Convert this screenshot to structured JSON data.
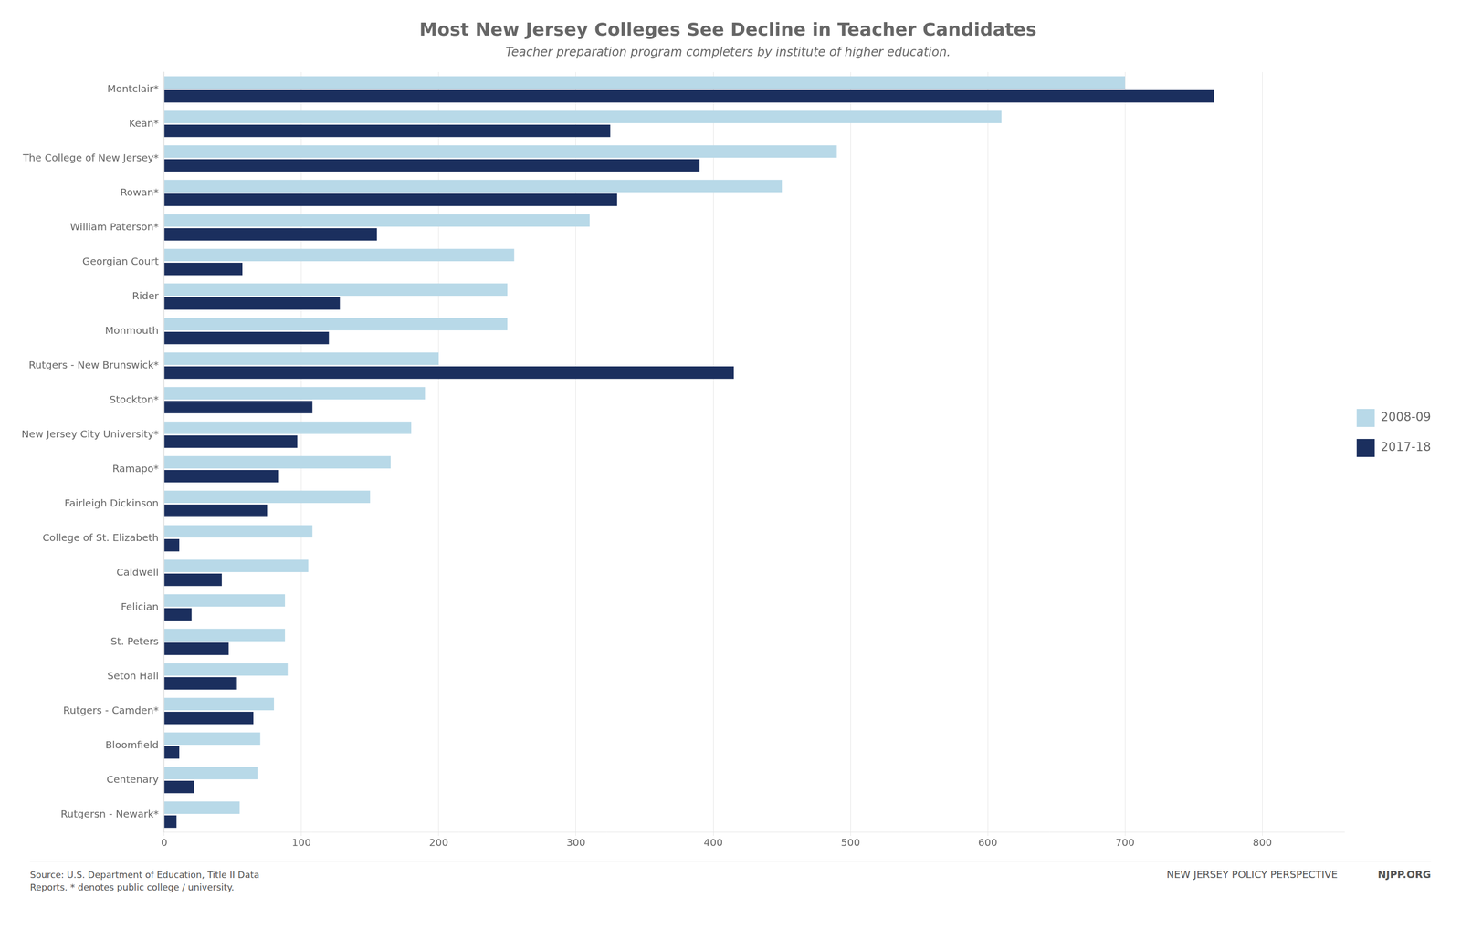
{
  "chart_data": {
    "type": "bar",
    "orientation": "horizontal",
    "title": "Most New Jersey Colleges See Decline in Teacher Candidates",
    "subtitle": "Teacher preparation program completers by institute of higher education.",
    "categories": [
      "Montclair*",
      "Kean*",
      "The College of New Jersey*",
      "Rowan*",
      "William Paterson*",
      "Georgian Court",
      "Rider",
      "Monmouth",
      "Rutgers - New Brunswick*",
      "Stockton*",
      "New Jersey City University*",
      "Ramapo*",
      "Fairleigh Dickinson",
      "College of St. Elizabeth",
      "Caldwell",
      "Felician",
      "St. Peters",
      "Seton Hall",
      "Rutgers - Camden*",
      "Bloomfield",
      "Centenary",
      "Rutgersn - Newark*"
    ],
    "series": [
      {
        "name": "2008-09",
        "color": "#b8d9e8",
        "values": [
          700,
          610,
          490,
          450,
          310,
          255,
          250,
          250,
          200,
          190,
          180,
          165,
          150,
          108,
          105,
          88,
          88,
          90,
          80,
          70,
          68,
          55
        ]
      },
      {
        "name": "2017-18",
        "color": "#1b2f5e",
        "values": [
          765,
          325,
          390,
          330,
          155,
          57,
          128,
          120,
          415,
          108,
          97,
          83,
          75,
          11,
          42,
          20,
          47,
          53,
          65,
          11,
          22,
          9
        ]
      }
    ],
    "xlim": [
      0,
      860
    ],
    "xticks": [
      0,
      100,
      200,
      300,
      400,
      500,
      600,
      700,
      800
    ],
    "grid": true,
    "legend": "right",
    "annotations": [
      "Source: U.S. Department of Education, Title II Data\nReports. * denotes public college / university.",
      "NEW JERSEY POLICY PERSPECTIVE",
      "NJPP.ORG"
    ]
  }
}
